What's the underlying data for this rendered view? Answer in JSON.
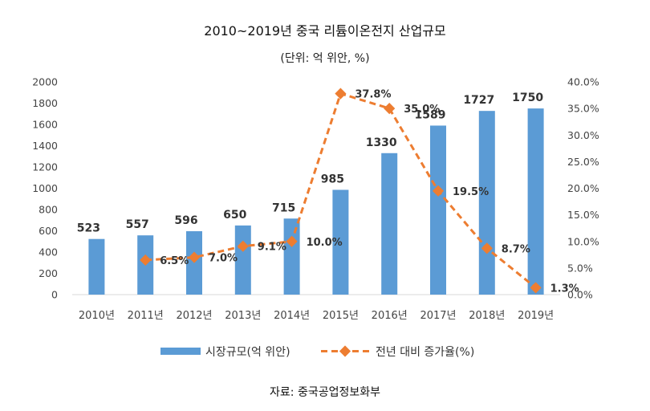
{
  "chart_data": {
    "type": "bar",
    "title": "2010~2019년 중국 리튬이온전지 산업규모",
    "subtitle": "(단위: 억 위안, %)",
    "categories": [
      "2010년",
      "2011년",
      "2012년",
      "2013년",
      "2014년",
      "2015년",
      "2016년",
      "2017년",
      "2018년",
      "2019년"
    ],
    "series": [
      {
        "name": "시장규모(억 위안)",
        "type": "bar",
        "axis": "left",
        "color": "#5b9bd5",
        "values": [
          523,
          557,
          596,
          650,
          715,
          985,
          1330,
          1589,
          1727,
          1750
        ],
        "labels": [
          "523",
          "557",
          "596",
          "650",
          "715",
          "985",
          "1330",
          "1589",
          "1727",
          "1750"
        ]
      },
      {
        "name": "전년 대비 증가율(%)",
        "type": "line",
        "axis": "right",
        "color": "#ed7d31",
        "values": [
          null,
          6.5,
          7.0,
          9.1,
          10.0,
          37.8,
          35.0,
          19.5,
          8.7,
          1.3
        ],
        "labels": [
          "",
          "6.5%",
          "7.0%",
          "9.1%",
          "10.0%",
          "37.8%",
          "35.0%",
          "19.5%",
          "8.7%",
          "1.3%"
        ]
      }
    ],
    "y_left": {
      "range": [
        0,
        2000
      ],
      "ticks": [
        "0",
        "200",
        "400",
        "600",
        "800",
        "1000",
        "1200",
        "1400",
        "1600",
        "1800",
        "2000"
      ]
    },
    "y_right": {
      "range": [
        0,
        40
      ],
      "ticks": [
        "0.0%",
        "5.0%",
        "10.0%",
        "15.0%",
        "20.0%",
        "25.0%",
        "30.0%",
        "35.0%",
        "40.0%"
      ]
    },
    "grid": false,
    "legend": "bottom"
  },
  "source": "자료: 중국공업정보화부"
}
